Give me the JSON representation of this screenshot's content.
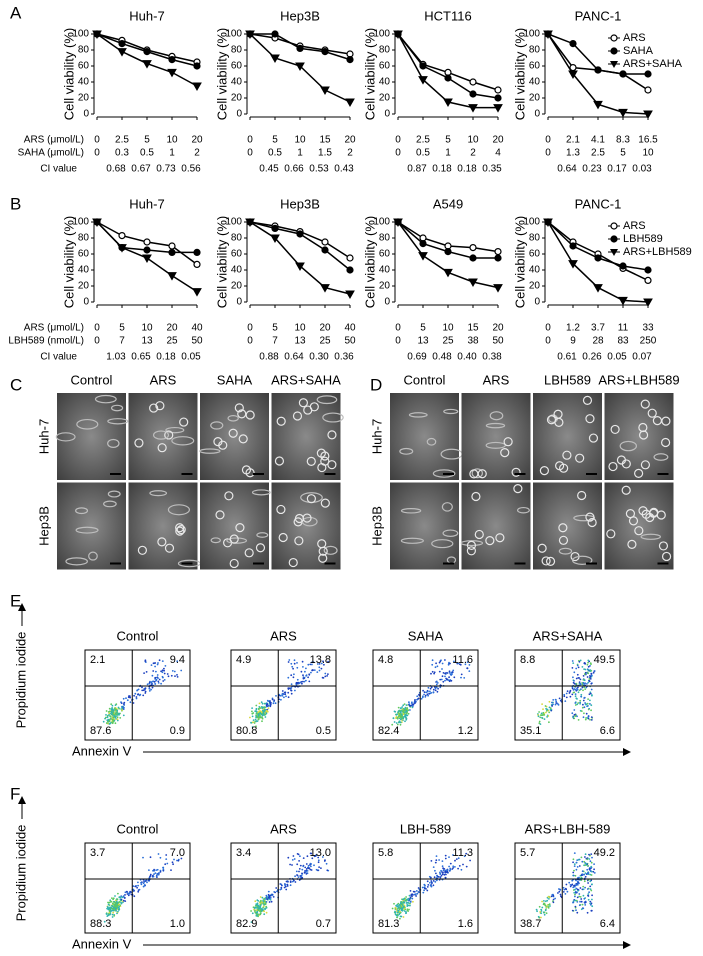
{
  "panel_labels": [
    "A",
    "B",
    "C",
    "D",
    "E",
    "F"
  ],
  "chart_data": [
    {
      "type": "line",
      "title": "Huh-7",
      "ylabel": "Cell viability (%)",
      "ylim": [
        0,
        100
      ],
      "yticks": [
        0,
        20,
        40,
        60,
        80,
        100
      ],
      "categories": [
        0,
        2.5,
        5,
        10,
        20
      ],
      "dose_rows": [
        {
          "label": "ARS (μmol/L)",
          "values": [
            "0",
            "2.5",
            "5",
            "10",
            "20"
          ]
        },
        {
          "label": "SAHA (μmol/L)",
          "values": [
            "0",
            "0.3",
            "0.5",
            "1",
            "2"
          ]
        }
      ],
      "ci_label": "CI value",
      "ci_values": [
        "0.68",
        "0.67",
        "0.73",
        "0.56"
      ],
      "series": [
        {
          "name": "ARS",
          "marker": "open-circle",
          "color": "#000000",
          "values": [
            100,
            92,
            80,
            72,
            65
          ]
        },
        {
          "name": "SAHA",
          "marker": "circle",
          "color": "#000000",
          "values": [
            100,
            88,
            78,
            68,
            60
          ]
        },
        {
          "name": "ARS+SAHA",
          "marker": "triangle-down",
          "color": "#000000",
          "values": [
            100,
            78,
            63,
            52,
            35
          ]
        }
      ]
    },
    {
      "type": "line",
      "title": "Hep3B",
      "ylabel": "Cell viability (%)",
      "ylim": [
        0,
        100
      ],
      "yticks": [
        0,
        20,
        40,
        60,
        80,
        100
      ],
      "categories": [
        0,
        5,
        10,
        15,
        20
      ],
      "dose_rows": [
        {
          "values": [
            "0",
            "5",
            "10",
            "15",
            "20"
          ]
        },
        {
          "values": [
            "0",
            "0.5",
            "1",
            "1.5",
            "2"
          ]
        }
      ],
      "ci_values": [
        "0.45",
        "0.66",
        "0.53",
        "0.43"
      ],
      "series": [
        {
          "name": "ARS",
          "marker": "open-circle",
          "color": "#000000",
          "values": [
            100,
            95,
            85,
            80,
            75
          ]
        },
        {
          "name": "SAHA",
          "marker": "circle",
          "color": "#000000",
          "values": [
            100,
            100,
            82,
            78,
            68
          ]
        },
        {
          "name": "ARS+SAHA",
          "marker": "triangle-down",
          "color": "#000000",
          "values": [
            100,
            70,
            60,
            30,
            15
          ]
        }
      ]
    },
    {
      "type": "line",
      "title": "HCT116",
      "ylabel": "Cell viability (%)",
      "ylim": [
        0,
        100
      ],
      "yticks": [
        0,
        20,
        40,
        60,
        80,
        100
      ],
      "categories": [
        0,
        2.5,
        5,
        10,
        20
      ],
      "dose_rows": [
        {
          "values": [
            "0",
            "2.5",
            "5",
            "10",
            "20"
          ]
        },
        {
          "values": [
            "0",
            "0.5",
            "1",
            "2",
            "4"
          ]
        }
      ],
      "ci_values": [
        "0.87",
        "0.18",
        "0.18",
        "0.35"
      ],
      "series": [
        {
          "name": "ARS",
          "marker": "open-circle",
          "color": "#000000",
          "values": [
            100,
            62,
            52,
            40,
            30
          ]
        },
        {
          "name": "SAHA",
          "marker": "circle",
          "color": "#000000",
          "values": [
            100,
            60,
            45,
            25,
            20
          ]
        },
        {
          "name": "ARS+SAHA",
          "marker": "triangle-down",
          "color": "#000000",
          "values": [
            100,
            43,
            15,
            8,
            8
          ]
        }
      ]
    },
    {
      "type": "line",
      "title": "PANC-1",
      "ylabel": "Cell viability (%)",
      "ylim": [
        0,
        100
      ],
      "yticks": [
        0,
        20,
        40,
        60,
        80,
        100
      ],
      "categories": [
        0,
        2.1,
        4.1,
        8.3,
        16.5
      ],
      "dose_rows": [
        {
          "values": [
            "0",
            "2.1",
            "4.1",
            "8.3",
            "16.5"
          ]
        },
        {
          "values": [
            "0",
            "1.3",
            "2.5",
            "5",
            "10"
          ]
        }
      ],
      "ci_values": [
        "0.64",
        "0.23",
        "0.17",
        "0.03"
      ],
      "legend": "upper right",
      "series": [
        {
          "name": "ARS",
          "marker": "open-circle",
          "color": "#000000",
          "values": [
            100,
            58,
            55,
            50,
            30
          ]
        },
        {
          "name": "SAHA",
          "marker": "circle",
          "color": "#000000",
          "values": [
            100,
            88,
            55,
            50,
            50
          ]
        },
        {
          "name": "ARS+SAHA",
          "marker": "triangle-down",
          "color": "#000000",
          "values": [
            100,
            50,
            12,
            2,
            0
          ]
        }
      ]
    },
    {
      "type": "line",
      "title": "Huh-7",
      "ylabel": "Cell viability (%)",
      "ylim": [
        0,
        100
      ],
      "yticks": [
        0,
        20,
        40,
        60,
        80,
        100
      ],
      "categories": [
        0,
        5,
        10,
        20,
        40
      ],
      "dose_rows": [
        {
          "label": "ARS (μmol/L)",
          "values": [
            "0",
            "5",
            "10",
            "20",
            "40"
          ]
        },
        {
          "label": "LBH589 (nmol/L)",
          "values": [
            "0",
            "7",
            "13",
            "25",
            "50"
          ]
        }
      ],
      "ci_label": "CI value",
      "ci_values": [
        "1.03",
        "0.65",
        "0.18",
        "0.05"
      ],
      "series": [
        {
          "name": "ARS",
          "marker": "open-circle",
          "color": "#000000",
          "values": [
            100,
            83,
            75,
            70,
            47
          ]
        },
        {
          "name": "LBH589",
          "marker": "circle",
          "color": "#000000",
          "values": [
            100,
            68,
            65,
            62,
            62
          ]
        },
        {
          "name": "ARS+LBH589",
          "marker": "triangle-down",
          "color": "#000000",
          "values": [
            100,
            68,
            55,
            33,
            13
          ]
        }
      ]
    },
    {
      "type": "line",
      "title": "Hep3B",
      "ylabel": "Cell viability (%)",
      "ylim": [
        0,
        100
      ],
      "yticks": [
        0,
        20,
        40,
        60,
        80,
        100
      ],
      "categories": [
        0,
        5,
        10,
        20,
        40
      ],
      "dose_rows": [
        {
          "values": [
            "0",
            "5",
            "10",
            "20",
            "40"
          ]
        },
        {
          "values": [
            "0",
            "7",
            "13",
            "25",
            "50"
          ]
        }
      ],
      "ci_values": [
        "0.88",
        "0.64",
        "0.30",
        "0.36"
      ],
      "series": [
        {
          "name": "ARS",
          "marker": "open-circle",
          "color": "#000000",
          "values": [
            100,
            95,
            88,
            75,
            55
          ]
        },
        {
          "name": "LBH589",
          "marker": "circle",
          "color": "#000000",
          "values": [
            100,
            92,
            85,
            65,
            40
          ]
        },
        {
          "name": "ARS+LBH589",
          "marker": "triangle-down",
          "color": "#000000",
          "values": [
            100,
            80,
            45,
            18,
            10
          ]
        }
      ]
    },
    {
      "type": "line",
      "title": "A549",
      "ylabel": "Cell viability (%)",
      "ylim": [
        0,
        100
      ],
      "yticks": [
        0,
        20,
        40,
        60,
        80,
        100
      ],
      "categories": [
        0,
        5,
        10,
        15,
        20
      ],
      "dose_rows": [
        {
          "values": [
            "0",
            "5",
            "10",
            "15",
            "20"
          ]
        },
        {
          "values": [
            "0",
            "13",
            "25",
            "38",
            "50"
          ]
        }
      ],
      "ci_values": [
        "0.69",
        "0.48",
        "0.40",
        "0.38"
      ],
      "series": [
        {
          "name": "ARS",
          "marker": "open-circle",
          "color": "#000000",
          "values": [
            100,
            80,
            70,
            68,
            63
          ]
        },
        {
          "name": "LBH589",
          "marker": "circle",
          "color": "#000000",
          "values": [
            100,
            73,
            63,
            55,
            55
          ]
        },
        {
          "name": "ARS+LBH589",
          "marker": "triangle-down",
          "color": "#000000",
          "values": [
            100,
            58,
            37,
            25,
            18
          ]
        }
      ]
    },
    {
      "type": "line",
      "title": "PANC-1",
      "ylabel": "Cell viability (%)",
      "ylim": [
        0,
        100
      ],
      "yticks": [
        0,
        20,
        40,
        60,
        80,
        100
      ],
      "categories": [
        0,
        1.2,
        3.7,
        11,
        33
      ],
      "dose_rows": [
        {
          "values": [
            "0",
            "1.2",
            "3.7",
            "11",
            "33"
          ]
        },
        {
          "values": [
            "0",
            "9",
            "28",
            "83",
            "250"
          ]
        }
      ],
      "ci_values": [
        "0.61",
        "0.26",
        "0.05",
        "0.07"
      ],
      "legend": "upper right",
      "series": [
        {
          "name": "ARS",
          "marker": "open-circle",
          "color": "#000000",
          "values": [
            100,
            75,
            60,
            42,
            27
          ]
        },
        {
          "name": "LBH589",
          "marker": "circle",
          "color": "#000000",
          "values": [
            100,
            70,
            55,
            45,
            40
          ]
        },
        {
          "name": "ARS+LBH589",
          "marker": "triangle-down",
          "color": "#000000",
          "values": [
            100,
            48,
            18,
            2,
            0
          ]
        }
      ]
    }
  ],
  "micrographs": [
    {
      "columns": [
        "Control",
        "ARS",
        "SAHA",
        "ARS+SAHA"
      ],
      "rows": [
        "Huh-7",
        "Hep3B"
      ]
    },
    {
      "columns": [
        "Control",
        "ARS",
        "LBH589",
        "ARS+LBH589"
      ],
      "rows": [
        "Huh-7",
        "Hep3B"
      ]
    }
  ],
  "flow": [
    {
      "ylabel": "Propidium iodide",
      "xlabel": "Annexin V",
      "plots": [
        {
          "title": "Control",
          "quadrants": [
            "2.1",
            "9.4",
            "87.6",
            "0.9"
          ]
        },
        {
          "title": "ARS",
          "quadrants": [
            "4.9",
            "13.8",
            "80.8",
            "0.5"
          ]
        },
        {
          "title": "SAHA",
          "quadrants": [
            "4.8",
            "11.6",
            "82.4",
            "1.2"
          ]
        },
        {
          "title": "ARS+SAHA",
          "quadrants": [
            "8.8",
            "49.5",
            "35.1",
            "6.6"
          ]
        }
      ]
    },
    {
      "ylabel": "Propidium iodide",
      "xlabel": "Annexin V",
      "plots": [
        {
          "title": "Control",
          "quadrants": [
            "3.7",
            "7.0",
            "88.3",
            "1.0"
          ]
        },
        {
          "title": "ARS",
          "quadrants": [
            "3.4",
            "13.0",
            "82.9",
            "0.7"
          ]
        },
        {
          "title": "LBH-589",
          "quadrants": [
            "5.8",
            "11.3",
            "81.3",
            "1.6"
          ]
        },
        {
          "title": "ARS+LBH-589",
          "quadrants": [
            "5.7",
            "49.2",
            "38.7",
            "6.4"
          ]
        }
      ]
    }
  ]
}
